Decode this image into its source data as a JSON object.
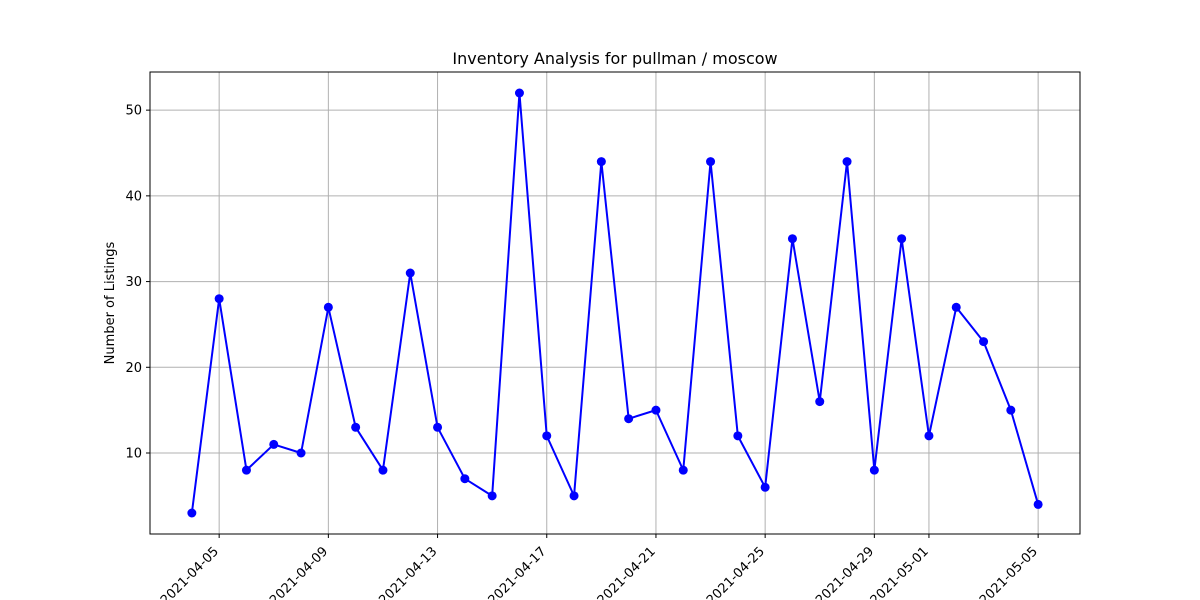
{
  "chart_data": {
    "type": "line",
    "title": "Inventory Analysis for pullman / moscow",
    "xlabel": "",
    "ylabel": "Number of Listings",
    "xlim": [
      "2021-04-02T11:12",
      "2021-05-06T12:48"
    ],
    "ylim": [
      0.55,
      54.45
    ],
    "grid": true,
    "x_ticks": [
      "2021-04-05",
      "2021-04-09",
      "2021-04-13",
      "2021-04-17",
      "2021-04-21",
      "2021-04-25",
      "2021-04-29",
      "2021-05-01",
      "2021-05-05"
    ],
    "y_ticks": [
      10,
      20,
      30,
      40,
      50
    ],
    "series": [
      {
        "color": "#0000ff",
        "marker": "circle",
        "points": [
          {
            "x": "2021-04-04",
            "y": 3
          },
          {
            "x": "2021-04-05",
            "y": 28
          },
          {
            "x": "2021-04-06",
            "y": 8
          },
          {
            "x": "2021-04-07",
            "y": 11
          },
          {
            "x": "2021-04-08",
            "y": 10
          },
          {
            "x": "2021-04-09",
            "y": 27
          },
          {
            "x": "2021-04-10",
            "y": 13
          },
          {
            "x": "2021-04-11",
            "y": 8
          },
          {
            "x": "2021-04-12",
            "y": 31
          },
          {
            "x": "2021-04-13",
            "y": 13
          },
          {
            "x": "2021-04-14",
            "y": 7
          },
          {
            "x": "2021-04-15",
            "y": 5
          },
          {
            "x": "2021-04-16",
            "y": 52
          },
          {
            "x": "2021-04-17",
            "y": 12
          },
          {
            "x": "2021-04-18",
            "y": 5
          },
          {
            "x": "2021-04-19",
            "y": 44
          },
          {
            "x": "2021-04-20",
            "y": 14
          },
          {
            "x": "2021-04-21",
            "y": 15
          },
          {
            "x": "2021-04-22",
            "y": 8
          },
          {
            "x": "2021-04-23",
            "y": 44
          },
          {
            "x": "2021-04-24",
            "y": 12
          },
          {
            "x": "2021-04-25",
            "y": 6
          },
          {
            "x": "2021-04-26",
            "y": 35
          },
          {
            "x": "2021-04-27",
            "y": 16
          },
          {
            "x": "2021-04-28",
            "y": 44
          },
          {
            "x": "2021-04-29",
            "y": 8
          },
          {
            "x": "2021-04-30",
            "y": 35
          },
          {
            "x": "2021-05-01",
            "y": 12
          },
          {
            "x": "2021-05-02",
            "y": 27
          },
          {
            "x": "2021-05-03",
            "y": 23
          },
          {
            "x": "2021-05-04",
            "y": 15
          },
          {
            "x": "2021-05-05",
            "y": 4
          }
        ]
      }
    ]
  }
}
